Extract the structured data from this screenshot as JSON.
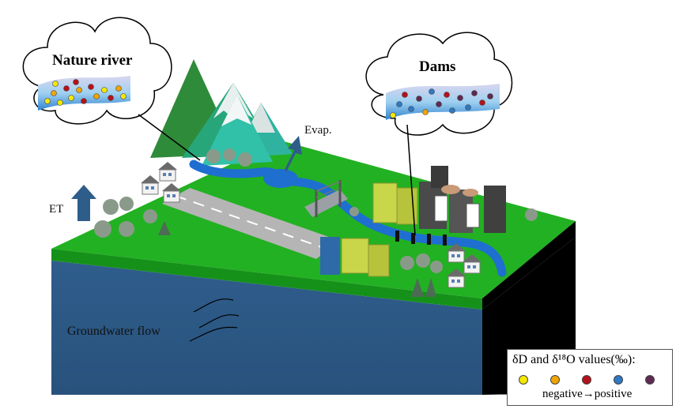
{
  "labels": {
    "nature_river": "Nature river",
    "dams": "Dams",
    "evap": "Evap.",
    "et": "ET",
    "groundwater": "Groundwater flow"
  },
  "legend": {
    "title": "δD and δ¹⁸O values(‰):",
    "note": "negative→positive",
    "colors": [
      "#f5e800",
      "#f0a500",
      "#b5121b",
      "#2f78c4",
      "#5e2a52"
    ]
  },
  "colors": {
    "land_top": "#1fb024",
    "land_front": "#128a12",
    "soil_face": "#2e5a87",
    "soil_right": "#000000",
    "river": "#1f6fd0",
    "road": "#b3b3b3",
    "mountain_dark": "#2e8b3a",
    "mountain_teal": "#2fb8a0",
    "mountain_snow": "#e6eeee",
    "arrow": "#2e5d8a",
    "building_yellow": "#c9d64a",
    "building_dark": "#4a4a4a"
  }
}
